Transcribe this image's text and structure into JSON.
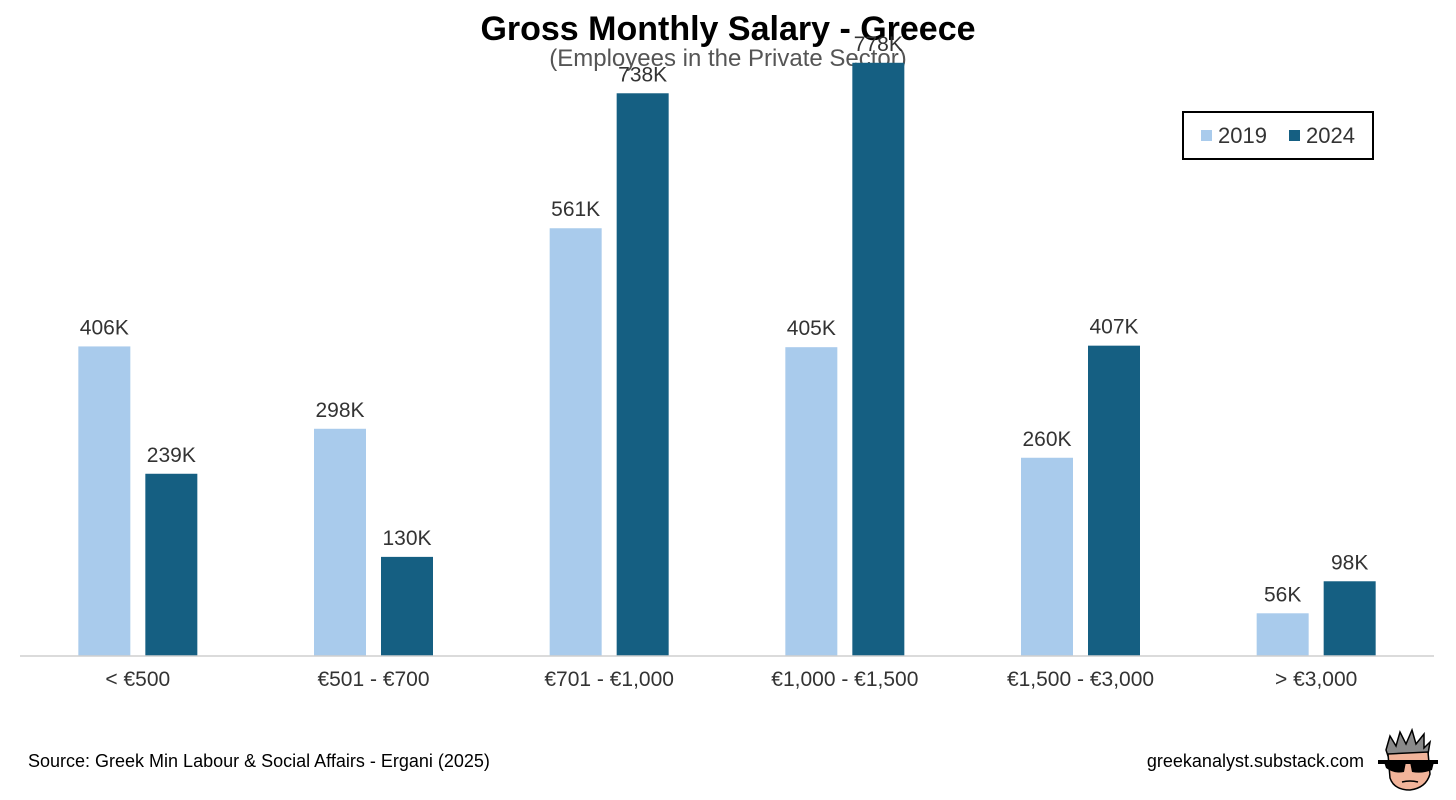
{
  "chart_data": {
    "type": "bar",
    "title": "Gross Monthly Salary - Greece",
    "subtitle": "(Employees in the Private Sector)",
    "categories": [
      "< €500",
      "€501 - €700",
      "€701 - €1,000",
      "€1,000 - €1,500",
      "€1,500 - €3,000",
      "> €3,000"
    ],
    "series": [
      {
        "name": "2019",
        "color": "#A9CBEC",
        "values": [
          406,
          298,
          561,
          405,
          260,
          56
        ],
        "labels": [
          "406K",
          "298K",
          "561K",
          "405K",
          "260K",
          "56K"
        ]
      },
      {
        "name": "2024",
        "color": "#155F82",
        "values": [
          239,
          130,
          738,
          778,
          407,
          98
        ],
        "labels": [
          "239K",
          "130K",
          "738K",
          "778K",
          "407K",
          "98K"
        ]
      }
    ],
    "ylim": [
      0,
      800
    ],
    "grid": false,
    "legend_position": "top-right"
  },
  "footer": {
    "source": "Source: Greek Min Labour & Social Affairs - Ergani (2025)",
    "site": "greekanalyst.substack.com"
  },
  "avatar_icon": "cartoon-face-sunglasses-icon"
}
